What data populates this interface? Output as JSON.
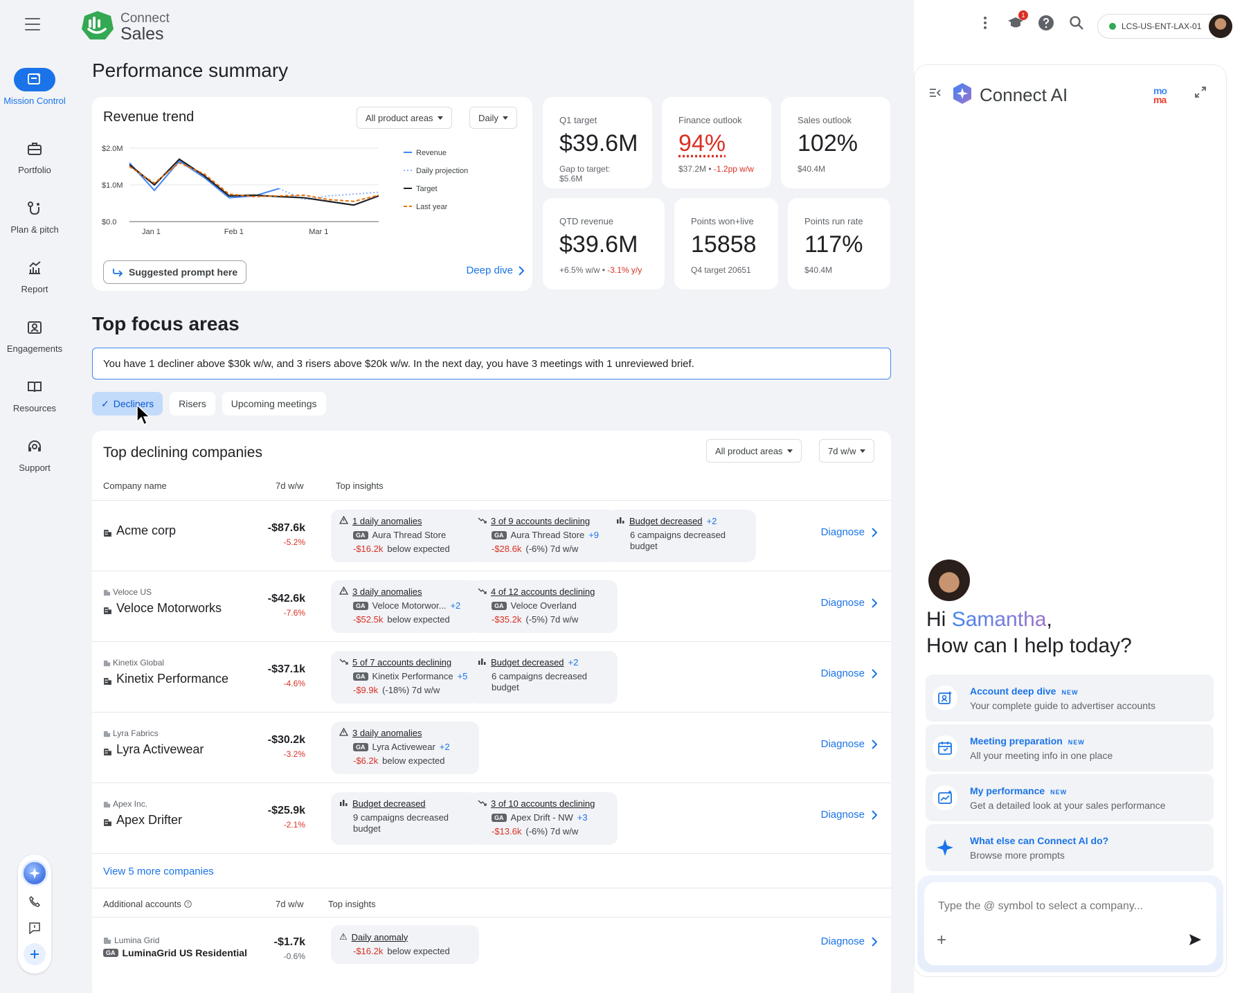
{
  "topbar": {
    "brand_top": "Connect",
    "brand_bottom": "Sales",
    "notif_count": "1",
    "account": "LCS-US-ENT-LAX-01"
  },
  "rail": {
    "items": [
      {
        "label": "Mission Control",
        "icon": "mission-control-icon"
      },
      {
        "label": "Portfolio",
        "icon": "briefcase-icon"
      },
      {
        "label": "Plan & pitch",
        "icon": "plan-icon"
      },
      {
        "label": "Report",
        "icon": "report-chart-icon"
      },
      {
        "label": "Engagements",
        "icon": "engagements-icon"
      },
      {
        "label": "Resources",
        "icon": "book-icon"
      },
      {
        "label": "Support",
        "icon": "headset-icon"
      }
    ]
  },
  "page": {
    "title": "Performance summary"
  },
  "revenue": {
    "title": "Revenue trend",
    "filter_product": "All product areas",
    "filter_period": "Daily",
    "suggest": "Suggested prompt here",
    "deep_dive": "Deep dive"
  },
  "chart_data": {
    "type": "line",
    "title": "Revenue trend",
    "y_ticks": [
      "$2.0M",
      "$1.0M",
      "$0.0"
    ],
    "x_ticks": [
      "Jan 1",
      "Feb 1",
      "Mar 1"
    ],
    "ylim": [
      0,
      2.0
    ],
    "legend_position": "right",
    "x": [
      0,
      1,
      2,
      3,
      4,
      5,
      6,
      7,
      8,
      9,
      10
    ],
    "series": [
      {
        "name": "Revenue",
        "color": "#4285f4",
        "style": "solid",
        "values": [
          1.6,
          0.85,
          1.65,
          1.2,
          0.65,
          0.7,
          0.9,
          null,
          null,
          null,
          null
        ]
      },
      {
        "name": "Daily projection",
        "color": "#8ab4f8",
        "style": "dotted",
        "values": [
          null,
          null,
          null,
          null,
          null,
          null,
          0.9,
          0.6,
          0.7,
          0.75,
          0.8
        ]
      },
      {
        "name": "Target",
        "color": "#202124",
        "style": "solid",
        "values": [
          1.55,
          1.0,
          1.7,
          1.25,
          0.7,
          0.72,
          0.68,
          0.65,
          0.55,
          0.45,
          0.7
        ]
      },
      {
        "name": "Last year",
        "color": "#e8710a",
        "style": "dashed",
        "values": [
          1.5,
          1.05,
          1.6,
          1.3,
          0.75,
          0.68,
          0.7,
          0.72,
          0.6,
          0.55,
          0.72
        ]
      }
    ]
  },
  "kpis": {
    "q1_target": {
      "label": "Q1 target",
      "value": "$39.6M",
      "sub": "Gap to target: $5.6M"
    },
    "finance": {
      "label": "Finance outlook",
      "value": "94%",
      "sub": "$37.2M •",
      "sub_neg": "-1.2pp w/w"
    },
    "sales": {
      "label": "Sales outlook",
      "value": "102%",
      "sub": "$40.4M"
    },
    "qtd": {
      "label": "QTD revenue",
      "value": "$39.6M",
      "sub": "+6.5% w/w •",
      "sub_neg": "-3.1% y/y"
    },
    "points": {
      "label": "Points won+live",
      "value": "15858",
      "sub": "Q4 target 20651"
    },
    "run_rate": {
      "label": "Points run rate",
      "value": "117%",
      "sub": "$40.4M"
    }
  },
  "focus": {
    "title": "Top focus areas",
    "summary": "You have 1 decliner above $30k w/w, and 3 risers above $20k w/w. In the next day, you have 3 meetings with 1 unreviewed brief.",
    "chips": [
      "Decliners",
      "Risers",
      "Upcoming meetings"
    ]
  },
  "declining": {
    "title": "Top declining companies",
    "filter_product": "All product areas",
    "filter_period": "7d w/w",
    "col_company": "Company name",
    "col_change": "7d w/w",
    "col_insights": "Top insights",
    "diagnose": "Diagnose",
    "view_more": "View 5 more companies",
    "rows": [
      {
        "parent": "",
        "name": "Acme corp",
        "value": "-$87.6k",
        "pct": "-5.2%",
        "insights": [
          {
            "icon": "warning-icon",
            "title": "1 daily anomalies",
            "more": "",
            "line1": "Aura Thread Store",
            "line1_more": "",
            "ga": "GA",
            "line2_neg": "-$16.2k",
            "line2": "below expected"
          },
          {
            "icon": "trend-down-icon",
            "title": "3 of 9 accounts declining",
            "more": "",
            "line1": "Aura Thread Store",
            "line1_more": "+9",
            "ga": "GA",
            "line2_neg": "-$28.6k",
            "line2": "(-6%) 7d w/w"
          },
          {
            "icon": "bar-chart-icon",
            "title": "Budget decreased",
            "more": "+2",
            "line1": "6 campaigns decreased",
            "line1_more": "",
            "ga": "",
            "line2_neg": "",
            "line2": "budget"
          }
        ]
      },
      {
        "parent": "Veloce US",
        "name": "Veloce Motorworks",
        "value": "-$42.6k",
        "pct": "-7.6%",
        "insights": [
          {
            "icon": "warning-icon",
            "title": "3 daily anomalies",
            "more": "",
            "line1": "Veloce Motorwor...",
            "line1_more": "+2",
            "ga": "GA",
            "line2_neg": "-$52.5k",
            "line2": "below expected"
          },
          {
            "icon": "trend-down-icon",
            "title": "4 of 12 accounts declining",
            "more": "",
            "line1": "Veloce Overland",
            "line1_more": "",
            "ga": "GA",
            "line2_neg": "-$35.2k",
            "line2": "(-5%) 7d w/w"
          }
        ]
      },
      {
        "parent": "Kinetix Global",
        "name": "Kinetix Performance",
        "value": "-$37.1k",
        "pct": "-4.6%",
        "insights": [
          {
            "icon": "trend-down-icon",
            "title": "5 of 7 accounts declining",
            "more": "",
            "line1": "Kinetix Performance",
            "line1_more": "+5",
            "ga": "GA",
            "line2_neg": "-$9.9k",
            "line2": "(-18%) 7d w/w"
          },
          {
            "icon": "bar-chart-icon",
            "title": "Budget decreased",
            "more": "+2",
            "line1": "6 campaigns decreased",
            "line1_more": "",
            "ga": "",
            "line2_neg": "",
            "line2": "budget"
          }
        ]
      },
      {
        "parent": "Lyra Fabrics",
        "name": "Lyra Activewear",
        "value": "-$30.2k",
        "pct": "-3.2%",
        "insights": [
          {
            "icon": "warning-icon",
            "title": "3 daily anomalies",
            "more": "",
            "line1": "Lyra Activewear",
            "line1_more": "+2",
            "ga": "GA",
            "line2_neg": "-$6.2k",
            "line2": "below expected"
          }
        ]
      },
      {
        "parent": "Apex Inc.",
        "name": "Apex Drifter",
        "value": "-$25.9k",
        "pct": "-2.1%",
        "insights": [
          {
            "icon": "bar-chart-icon",
            "title": "Budget decreased",
            "more": "",
            "line1": "9 campaigns decreased",
            "line1_more": "",
            "ga": "",
            "line2_neg": "",
            "line2": "budget"
          },
          {
            "icon": "trend-down-icon",
            "title": "3 of 10 accounts declining",
            "more": "",
            "line1": "Apex Drift - NW",
            "line1_more": "+3",
            "ga": "GA",
            "line2_neg": "-$13.6k",
            "line2": "(-6%) 7d w/w"
          }
        ]
      }
    ],
    "additional": {
      "col_company": "Additional accounts",
      "col_change": "7d w/w",
      "col_insights": "Top insights",
      "row": {
        "parent": "Lumina Grid",
        "ga": "GA",
        "name": "LuminaGrid US Residential",
        "value": "-$1.7k",
        "pct": "-0.6%",
        "insight": {
          "title": "Daily anomaly",
          "line_neg": "-$16.2k",
          "line": "below expected"
        }
      }
    }
  },
  "ai": {
    "title": "Connect AI",
    "moma": "mo ma",
    "greeting_hi": "Hi",
    "greeting_name": "Samantha",
    "greeting_q": "How can I help today?",
    "prompts": [
      {
        "title": "Account deep dive",
        "tag": "NEW",
        "desc": "Your complete guide to advertiser accounts"
      },
      {
        "title": "Meeting preparation",
        "tag": "NEW",
        "desc": "All your meeting info in one place"
      },
      {
        "title": "My performance",
        "tag": "NEW",
        "desc": "Get a detailed look at your sales performance"
      },
      {
        "title": "What else can Connect AI do?",
        "tag": "",
        "desc": "Browse more prompts"
      }
    ],
    "input_placeholder": "Type the @ symbol to select a company..."
  }
}
